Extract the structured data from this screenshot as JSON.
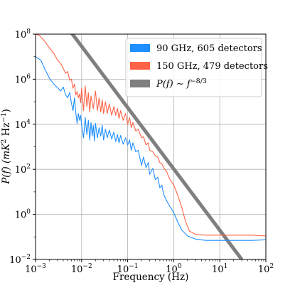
{
  "chart_data": {
    "type": "line",
    "xlabel": "Frequency (Hz)",
    "ylabel_parts": {
      "pre": "P(f) (mK",
      "exp1": "2",
      "mid": " Hz",
      "exp2": "−1",
      "post": ")"
    },
    "x_scale": "log",
    "y_scale": "log",
    "xlim": [
      0.001,
      100
    ],
    "ylim": [
      0.01,
      100000000
    ],
    "grid": true,
    "legend_position": "top-right",
    "x_ticks": [
      {
        "value": 0.001,
        "base": "10",
        "exp": "−3"
      },
      {
        "value": 0.01,
        "base": "10",
        "exp": "−2"
      },
      {
        "value": 0.1,
        "base": "10",
        "exp": "−1"
      },
      {
        "value": 1,
        "base": "10",
        "exp": "0"
      },
      {
        "value": 10,
        "base": "10",
        "exp": "1"
      },
      {
        "value": 100,
        "base": "10",
        "exp": "2"
      }
    ],
    "y_ticks": [
      {
        "value": 0.01,
        "base": "10",
        "exp": "−2"
      },
      {
        "value": 1,
        "base": "10",
        "exp": "0"
      },
      {
        "value": 100,
        "base": "10",
        "exp": "2"
      },
      {
        "value": 10000,
        "base": "10",
        "exp": "4"
      },
      {
        "value": 1000000,
        "base": "10",
        "exp": "6"
      },
      {
        "value": 100000000,
        "base": "10",
        "exp": "8"
      }
    ],
    "series": [
      {
        "name": "90 GHz, 605 detectors",
        "color": "#1f8fff",
        "points": [
          [
            0.001,
            10000000
          ],
          [
            0.0013,
            7000000
          ],
          [
            0.0016,
            2800000
          ],
          [
            0.002,
            1100000
          ],
          [
            0.0025,
            600000
          ],
          [
            0.003,
            420000
          ],
          [
            0.0035,
            300000
          ],
          [
            0.004,
            450000
          ],
          [
            0.0045,
            200000
          ],
          [
            0.005,
            150000
          ],
          [
            0.0055,
            260000
          ],
          [
            0.006,
            90000
          ],
          [
            0.0065,
            40000
          ],
          [
            0.007,
            150000
          ],
          [
            0.0075,
            30000
          ],
          [
            0.008,
            11000
          ],
          [
            0.0085,
            30000
          ],
          [
            0.009,
            15000
          ],
          [
            0.0095,
            25000
          ],
          [
            0.01,
            9000
          ],
          [
            0.011,
            2500
          ],
          [
            0.012,
            20000
          ],
          [
            0.013,
            3500
          ],
          [
            0.014,
            15000
          ],
          [
            0.015,
            2000
          ],
          [
            0.016,
            12000
          ],
          [
            0.017,
            3000
          ],
          [
            0.018,
            9000
          ],
          [
            0.019,
            1800
          ],
          [
            0.02,
            11000
          ],
          [
            0.022,
            2500
          ],
          [
            0.024,
            7000
          ],
          [
            0.026,
            3000
          ],
          [
            0.028,
            9000
          ],
          [
            0.03,
            2000
          ],
          [
            0.033,
            6000
          ],
          [
            0.036,
            2500
          ],
          [
            0.04,
            5500
          ],
          [
            0.045,
            2200
          ],
          [
            0.05,
            4500
          ],
          [
            0.055,
            1700
          ],
          [
            0.06,
            3500
          ],
          [
            0.065,
            1500
          ],
          [
            0.07,
            3200
          ],
          [
            0.08,
            1300
          ],
          [
            0.09,
            2500
          ],
          [
            0.1,
            1200
          ],
          [
            0.11,
            2000
          ],
          [
            0.12,
            700
          ],
          [
            0.13,
            1500
          ],
          [
            0.15,
            600
          ],
          [
            0.17,
            700
          ],
          [
            0.2,
            150
          ],
          [
            0.22,
            350
          ],
          [
            0.25,
            120
          ],
          [
            0.28,
            200
          ],
          [
            0.3,
            60
          ],
          [
            0.35,
            110
          ],
          [
            0.4,
            35
          ],
          [
            0.45,
            45
          ],
          [
            0.5,
            15
          ],
          [
            0.55,
            20
          ],
          [
            0.6,
            8
          ],
          [
            0.7,
            4
          ],
          [
            0.8,
            2.5
          ],
          [
            1,
            1.2
          ],
          [
            1.2,
            0.5
          ],
          [
            1.5,
            0.2
          ],
          [
            2,
            0.11
          ],
          [
            3,
            0.08
          ],
          [
            5,
            0.07
          ],
          [
            10,
            0.07
          ],
          [
            20,
            0.07
          ],
          [
            50,
            0.07
          ],
          [
            100,
            0.075
          ]
        ]
      },
      {
        "name": "150 GHz, 479 detectors",
        "color": "#ff6347",
        "points": [
          [
            0.001,
            100000000
          ],
          [
            0.0012,
            90000000
          ],
          [
            0.0015,
            55000000
          ],
          [
            0.002,
            25000000
          ],
          [
            0.0025,
            14000000
          ],
          [
            0.003,
            7000000
          ],
          [
            0.0035,
            5000000
          ],
          [
            0.004,
            3000000
          ],
          [
            0.0045,
            1800000
          ],
          [
            0.005,
            2200000
          ],
          [
            0.0055,
            900000
          ],
          [
            0.006,
            1000000
          ],
          [
            0.0065,
            400000
          ],
          [
            0.007,
            600000
          ],
          [
            0.0075,
            200000
          ],
          [
            0.008,
            280000
          ],
          [
            0.0085,
            150000
          ],
          [
            0.009,
            220000
          ],
          [
            0.0095,
            90000
          ],
          [
            0.01,
            400000
          ],
          [
            0.011,
            40000
          ],
          [
            0.012,
            500000
          ],
          [
            0.013,
            60000
          ],
          [
            0.014,
            250000
          ],
          [
            0.015,
            35000
          ],
          [
            0.016,
            180000
          ],
          [
            0.018,
            50000
          ],
          [
            0.02,
            300000
          ],
          [
            0.022,
            40000
          ],
          [
            0.024,
            150000
          ],
          [
            0.026,
            35000
          ],
          [
            0.028,
            120000
          ],
          [
            0.03,
            30000
          ],
          [
            0.033,
            100000
          ],
          [
            0.036,
            30000
          ],
          [
            0.04,
            80000
          ],
          [
            0.045,
            25000
          ],
          [
            0.05,
            60000
          ],
          [
            0.055,
            25000
          ],
          [
            0.06,
            50000
          ],
          [
            0.065,
            18000
          ],
          [
            0.07,
            40000
          ],
          [
            0.08,
            15000
          ],
          [
            0.09,
            30000
          ],
          [
            0.1,
            10000
          ],
          [
            0.11,
            20000
          ],
          [
            0.12,
            7000
          ],
          [
            0.13,
            12000
          ],
          [
            0.15,
            5000
          ],
          [
            0.17,
            6000
          ],
          [
            0.2,
            2500
          ],
          [
            0.22,
            2800
          ],
          [
            0.25,
            1200
          ],
          [
            0.28,
            1500
          ],
          [
            0.3,
            700
          ],
          [
            0.35,
            600
          ],
          [
            0.4,
            400
          ],
          [
            0.45,
            350
          ],
          [
            0.5,
            200
          ],
          [
            0.55,
            180
          ],
          [
            0.6,
            120
          ],
          [
            0.7,
            80
          ],
          [
            0.8,
            40
          ],
          [
            1,
            20
          ],
          [
            1.2,
            8
          ],
          [
            1.5,
            2
          ],
          [
            1.8,
            0.5
          ],
          [
            2.2,
            0.18
          ],
          [
            3,
            0.13
          ],
          [
            5,
            0.12
          ],
          [
            10,
            0.12
          ],
          [
            20,
            0.12
          ],
          [
            50,
            0.12
          ],
          [
            100,
            0.11
          ]
        ]
      }
    ],
    "reference_line": {
      "label_parts": {
        "pre": "P(f)",
        "mid": " ∼ ",
        "var": "f",
        "exp": "−8/3"
      },
      "color": "#7f7f7f",
      "points": [
        [
          0.005,
          190000000
        ],
        [
          30,
          0.01
        ]
      ]
    }
  }
}
